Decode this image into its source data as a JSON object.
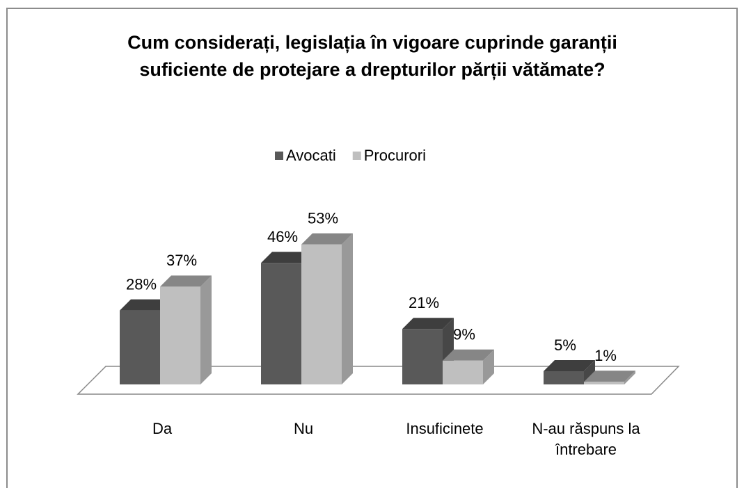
{
  "chart_data": {
    "type": "bar3d",
    "title": "Cum considerați, legislația în vigoare cuprinde garanții suficiente de protejare a drepturilor părții vătămate?",
    "categories": [
      "Da",
      "Nu",
      "Insuficinete",
      "N-au răspuns la întrebare"
    ],
    "series": [
      {
        "name": "Avocati",
        "color": "#595959",
        "values": [
          28,
          46,
          21,
          5
        ],
        "value_labels": [
          "28%",
          "46%",
          "21%",
          "5%"
        ]
      },
      {
        "name": "Procurori",
        "color": "#bfbfbf",
        "values": [
          37,
          53,
          9,
          1
        ],
        "value_labels": [
          "37%",
          "53%",
          "9%",
          "1%"
        ]
      }
    ],
    "legend": "top"
  }
}
